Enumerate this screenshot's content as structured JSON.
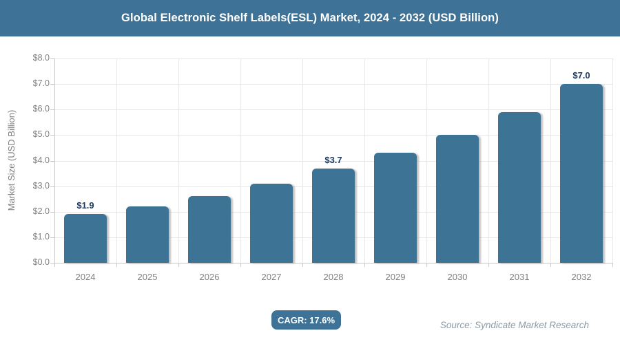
{
  "header": {
    "title": "Global Electronic Shelf Labels(ESL) Market, 2024 - 2032 (USD Billion)"
  },
  "footer": {
    "cagr_label": "CAGR: 17.6%",
    "source": "Source: Syndicate Market Research"
  },
  "chart_data": {
    "type": "bar",
    "title": "Global Electronic Shelf Labels(ESL) Market, 2024 - 2032 (USD Billion)",
    "categories": [
      "2024",
      "2025",
      "2026",
      "2027",
      "2028",
      "2029",
      "2030",
      "2031",
      "2032"
    ],
    "values": [
      1.9,
      2.2,
      2.6,
      3.1,
      3.7,
      4.3,
      5.0,
      5.9,
      7.0
    ],
    "data_labels": {
      "0": "$1.9",
      "4": "$3.7",
      "8": "$7.0"
    },
    "xlabel": "",
    "ylabel": "Market Size (USD Billion)",
    "ylim": [
      0,
      8
    ],
    "ytick_labels": [
      "$0.0",
      "$1.0",
      "$2.0",
      "$3.0",
      "$4.0",
      "$5.0",
      "$6.0",
      "$7.0",
      "$8.0"
    ],
    "grid": true,
    "legend": "none",
    "cagr": "17.6%"
  },
  "colors": {
    "header_bg": "#3e7296",
    "bar": "#3d7496",
    "label_color": "#1f3a60",
    "axis_text": "#7f7f7f",
    "grid": "#e7e7e7",
    "axis_line": "#c9c9c9",
    "source_text": "#8d9aa3"
  }
}
